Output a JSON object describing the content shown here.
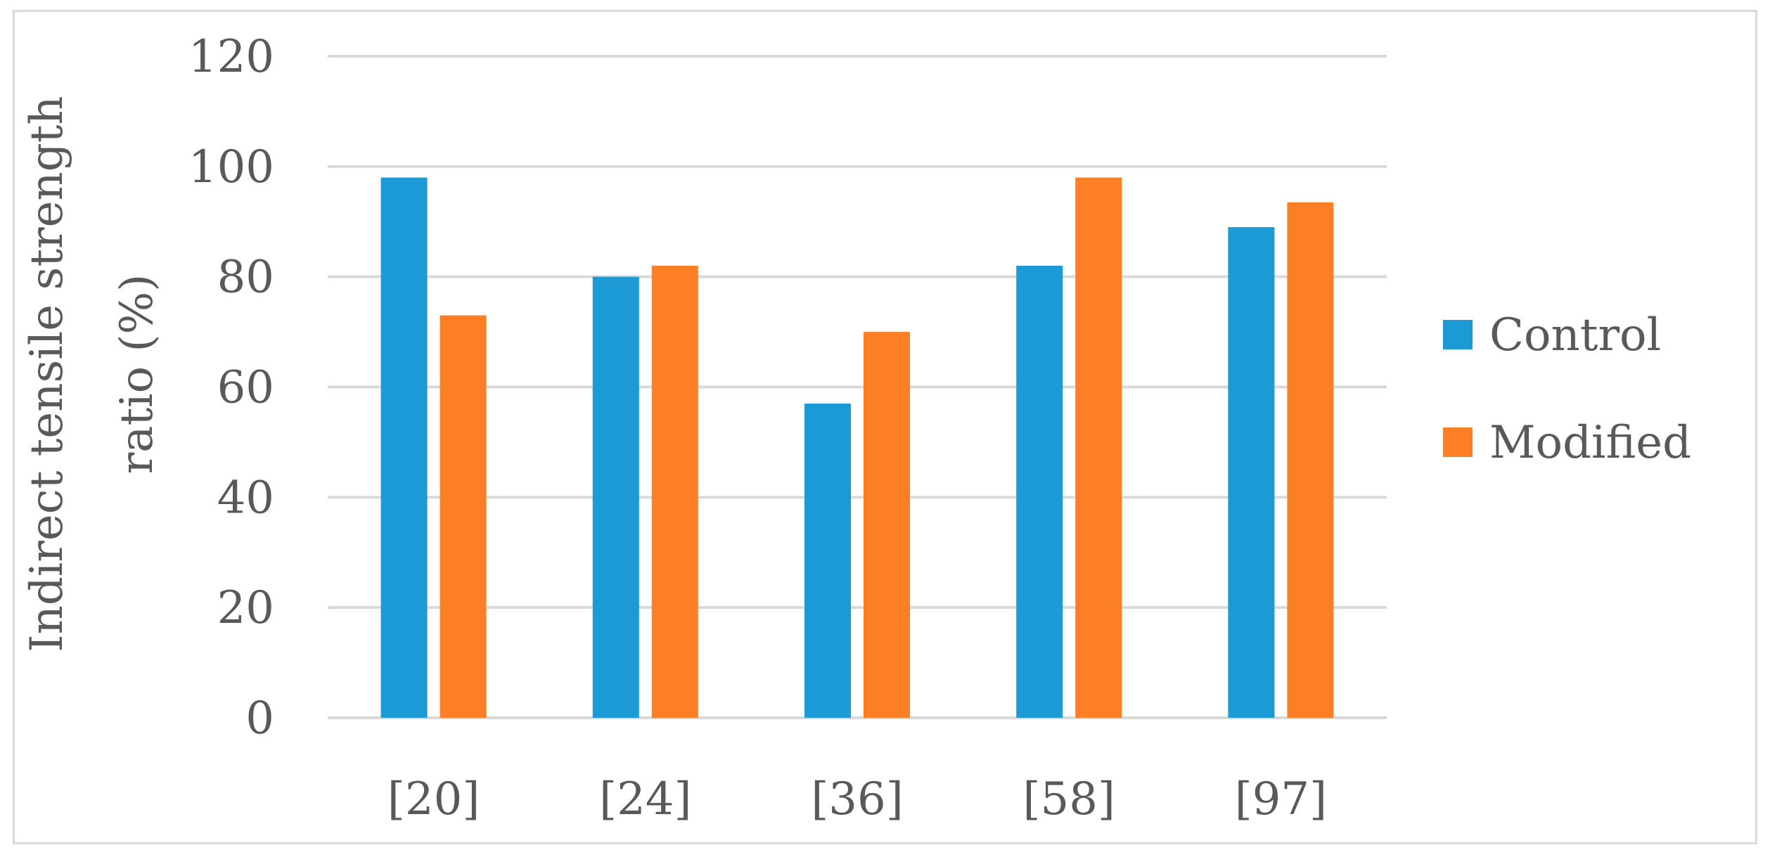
{
  "chart_data": {
    "type": "bar",
    "title": "",
    "xlabel": "",
    "ylabel": "Indirect tensile strength ratio (%)",
    "ylabel_lines": [
      "Indirect tensile strength",
      "ratio (%)"
    ],
    "categories": [
      "[20]",
      "[24]",
      "[36]",
      "[58]",
      "[97]"
    ],
    "series": [
      {
        "name": "Control",
        "color": "#1b9ad6",
        "values": [
          98,
          80,
          57,
          82,
          89
        ]
      },
      {
        "name": "Modified",
        "color": "#fd7f25",
        "values": [
          73,
          82,
          70,
          98,
          93.5
        ]
      }
    ],
    "ylim": [
      0,
      120
    ],
    "yticks": [
      0,
      20,
      40,
      60,
      80,
      100,
      120
    ],
    "grid": true,
    "legend_position": "right"
  }
}
